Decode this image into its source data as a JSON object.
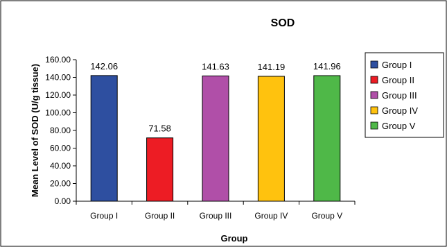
{
  "chart_data": {
    "type": "bar",
    "title": "SOD",
    "xlabel": "Group",
    "ylabel": "Mean Level of SOD  (U/g tissue)",
    "ylim": [
      0,
      160
    ],
    "yticks": [
      "0.00",
      "20.00",
      "40.00",
      "60.00",
      "80.00",
      "100.00",
      "120.00",
      "140.00",
      "160.00"
    ],
    "categories": [
      "Group I",
      "Group II",
      "Group III",
      "Group IV",
      "Group V"
    ],
    "values": [
      142.06,
      71.58,
      141.63,
      141.19,
      141.96
    ],
    "data_labels": [
      "142.06",
      "71.58",
      "141.63",
      "141.19",
      "141.96"
    ],
    "colors": [
      "#2E4FA0",
      "#ED1C24",
      "#B04FA8",
      "#FFC20E",
      "#4FB848"
    ],
    "legend": {
      "placement": "right",
      "entries": [
        "Group I",
        "Group II",
        "Group III",
        "Group IV",
        "Group V"
      ]
    },
    "grid": false
  }
}
